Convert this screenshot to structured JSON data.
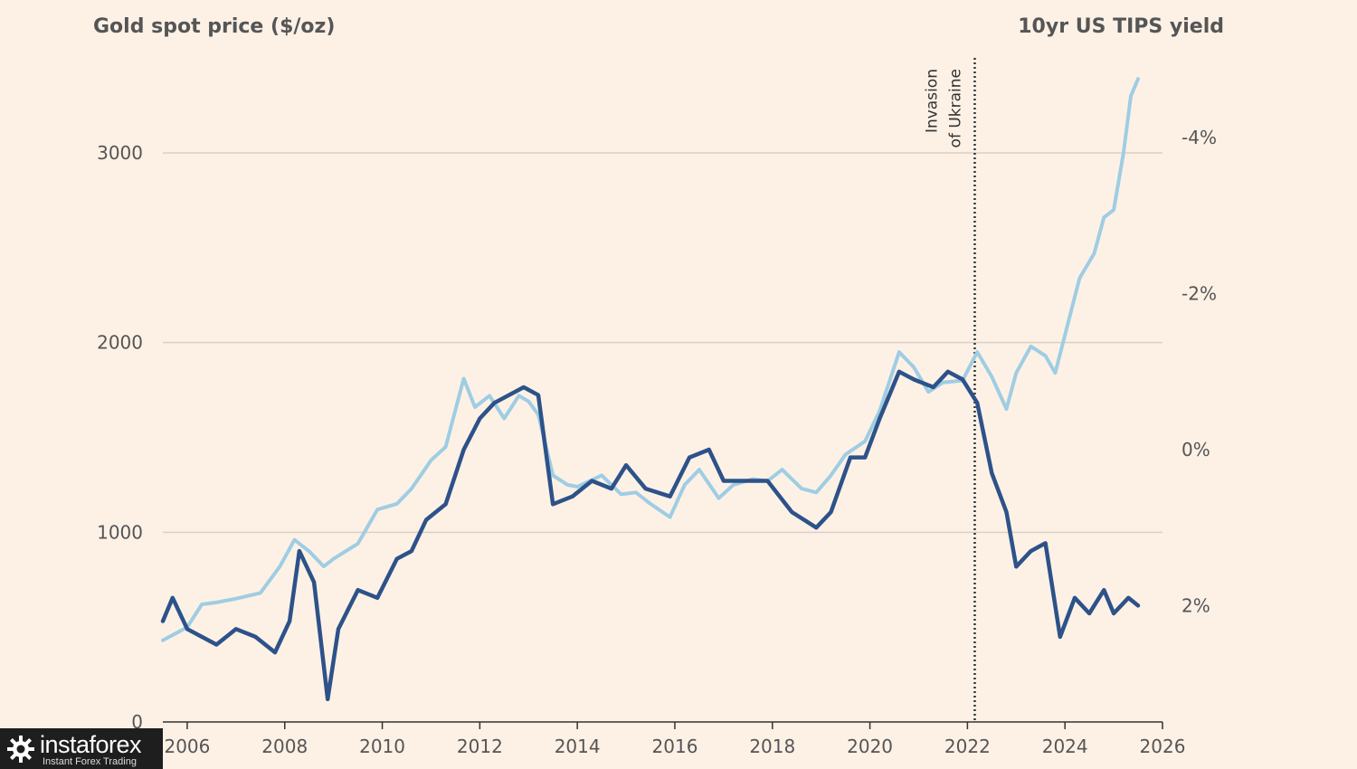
{
  "chart_data": {
    "type": "line",
    "left_axis_title": "Gold spot price ($/oz)",
    "right_axis_title": "10yr US TIPS yield",
    "left_ticks": [
      0,
      1000,
      2000,
      3000
    ],
    "right_ticks": [
      "-4%",
      "-2%",
      "0%",
      "2%"
    ],
    "right_axis_inverted": true,
    "x_ticks": [
      2006,
      2008,
      2010,
      2012,
      2014,
      2016,
      2018,
      2020,
      2022,
      2024,
      2026
    ],
    "xlim": [
      2005.5,
      2026
    ],
    "ylim_left": [
      0,
      3000
    ],
    "ylim_right_percent": [
      3.5,
      -4.0
    ],
    "annotation": {
      "x": 2022.15,
      "lines": [
        "Invasion",
        "of Ukraine"
      ]
    },
    "series": [
      {
        "axis": "left",
        "color": "#9fcde3",
        "points": [
          [
            2005.5,
            430
          ],
          [
            2006.0,
            500
          ],
          [
            2006.3,
            620
          ],
          [
            2006.6,
            630
          ],
          [
            2007.0,
            650
          ],
          [
            2007.5,
            680
          ],
          [
            2007.9,
            820
          ],
          [
            2008.2,
            960
          ],
          [
            2008.5,
            900
          ],
          [
            2008.8,
            820
          ],
          [
            2009.0,
            860
          ],
          [
            2009.5,
            940
          ],
          [
            2009.9,
            1120
          ],
          [
            2010.3,
            1150
          ],
          [
            2010.6,
            1230
          ],
          [
            2011.0,
            1380
          ],
          [
            2011.3,
            1450
          ],
          [
            2011.67,
            1810
          ],
          [
            2011.9,
            1660
          ],
          [
            2012.2,
            1720
          ],
          [
            2012.5,
            1600
          ],
          [
            2012.8,
            1720
          ],
          [
            2013.0,
            1690
          ],
          [
            2013.2,
            1620
          ],
          [
            2013.5,
            1300
          ],
          [
            2013.8,
            1250
          ],
          [
            2014.0,
            1240
          ],
          [
            2014.5,
            1300
          ],
          [
            2014.9,
            1200
          ],
          [
            2015.2,
            1210
          ],
          [
            2015.5,
            1150
          ],
          [
            2015.9,
            1080
          ],
          [
            2016.2,
            1250
          ],
          [
            2016.5,
            1330
          ],
          [
            2016.9,
            1180
          ],
          [
            2017.2,
            1250
          ],
          [
            2017.6,
            1280
          ],
          [
            2017.9,
            1270
          ],
          [
            2018.2,
            1330
          ],
          [
            2018.6,
            1230
          ],
          [
            2018.9,
            1210
          ],
          [
            2019.2,
            1300
          ],
          [
            2019.5,
            1410
          ],
          [
            2019.9,
            1480
          ],
          [
            2020.2,
            1640
          ],
          [
            2020.6,
            1950
          ],
          [
            2020.9,
            1870
          ],
          [
            2021.2,
            1740
          ],
          [
            2021.5,
            1790
          ],
          [
            2021.9,
            1800
          ],
          [
            2022.2,
            1950
          ],
          [
            2022.5,
            1820
          ],
          [
            2022.8,
            1650
          ],
          [
            2023.0,
            1840
          ],
          [
            2023.3,
            1980
          ],
          [
            2023.6,
            1930
          ],
          [
            2023.8,
            1840
          ],
          [
            2024.0,
            2040
          ],
          [
            2024.3,
            2340
          ],
          [
            2024.6,
            2470
          ],
          [
            2024.8,
            2660
          ],
          [
            2025.0,
            2700
          ],
          [
            2025.2,
            3000
          ],
          [
            2025.35,
            3300
          ],
          [
            2025.5,
            3390
          ]
        ]
      },
      {
        "axis": "right",
        "color": "#2d5289",
        "points": [
          [
            2005.5,
            2.2
          ],
          [
            2005.7,
            1.9
          ],
          [
            2006.0,
            2.3
          ],
          [
            2006.3,
            2.4
          ],
          [
            2006.6,
            2.5
          ],
          [
            2007.0,
            2.3
          ],
          [
            2007.4,
            2.4
          ],
          [
            2007.8,
            2.6
          ],
          [
            2008.1,
            2.2
          ],
          [
            2008.3,
            1.3
          ],
          [
            2008.6,
            1.7
          ],
          [
            2008.88,
            3.2
          ],
          [
            2009.1,
            2.3
          ],
          [
            2009.5,
            1.8
          ],
          [
            2009.9,
            1.9
          ],
          [
            2010.3,
            1.4
          ],
          [
            2010.6,
            1.3
          ],
          [
            2010.9,
            0.9
          ],
          [
            2011.3,
            0.7
          ],
          [
            2011.67,
            0.0
          ],
          [
            2012.0,
            -0.4
          ],
          [
            2012.3,
            -0.6
          ],
          [
            2012.9,
            -0.8
          ],
          [
            2013.2,
            -0.7
          ],
          [
            2013.5,
            0.7
          ],
          [
            2013.9,
            0.6
          ],
          [
            2014.3,
            0.4
          ],
          [
            2014.7,
            0.5
          ],
          [
            2015.0,
            0.2
          ],
          [
            2015.4,
            0.5
          ],
          [
            2015.9,
            0.6
          ],
          [
            2016.3,
            0.1
          ],
          [
            2016.7,
            0.0
          ],
          [
            2017.0,
            0.4
          ],
          [
            2017.5,
            0.4
          ],
          [
            2017.9,
            0.4
          ],
          [
            2018.4,
            0.8
          ],
          [
            2018.9,
            1.0
          ],
          [
            2019.2,
            0.8
          ],
          [
            2019.6,
            0.1
          ],
          [
            2019.9,
            0.1
          ],
          [
            2020.2,
            -0.4
          ],
          [
            2020.6,
            -1.0
          ],
          [
            2020.9,
            -0.9
          ],
          [
            2021.3,
            -0.8
          ],
          [
            2021.6,
            -1.0
          ],
          [
            2021.9,
            -0.9
          ],
          [
            2022.2,
            -0.6
          ],
          [
            2022.5,
            0.3
          ],
          [
            2022.8,
            0.8
          ],
          [
            2023.0,
            1.5
          ],
          [
            2023.3,
            1.3
          ],
          [
            2023.6,
            1.2
          ],
          [
            2023.9,
            2.4
          ],
          [
            2024.2,
            1.9
          ],
          [
            2024.5,
            2.1
          ],
          [
            2024.8,
            1.8
          ],
          [
            2025.0,
            2.1
          ],
          [
            2025.3,
            1.9
          ],
          [
            2025.5,
            2.0
          ]
        ]
      }
    ]
  },
  "logo": {
    "name": "instaforex",
    "tagline": "Instant Forex Trading"
  }
}
